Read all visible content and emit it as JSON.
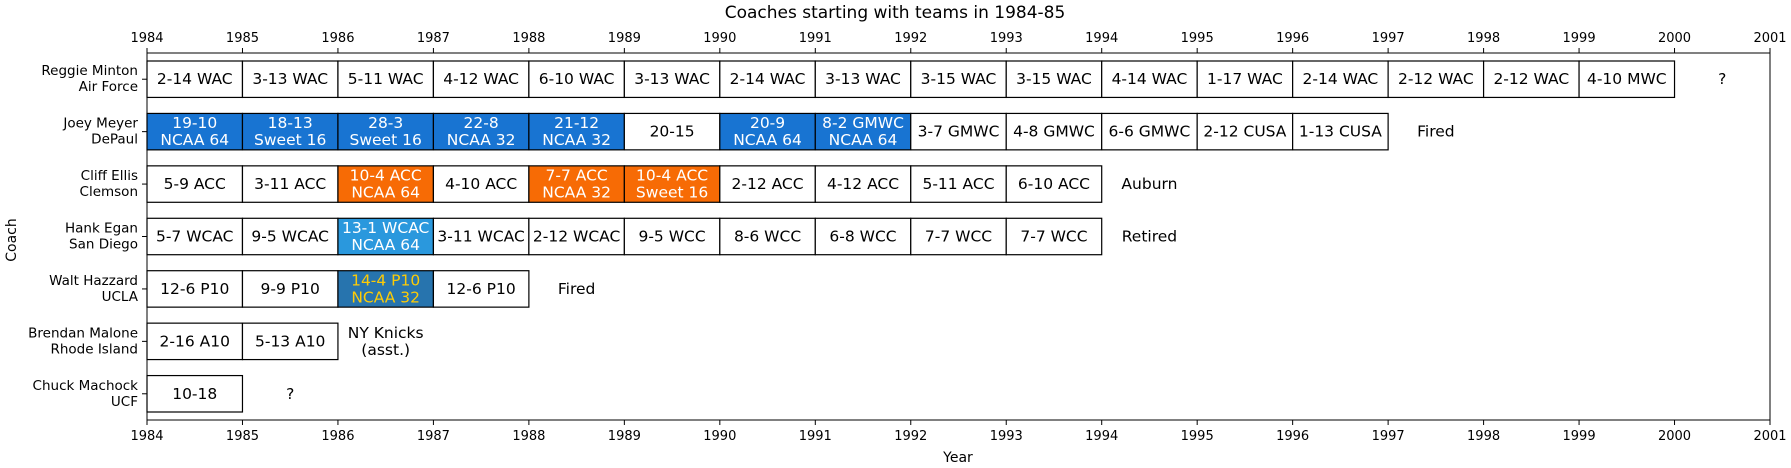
{
  "chart_data": {
    "type": "table",
    "title": "Coaches starting with teams in 1984-85",
    "xlabel": "Year",
    "ylabel": "Coach",
    "xlim": [
      1984,
      2001
    ],
    "x_ticks": [
      "1984",
      "1985",
      "1986",
      "1987",
      "1988",
      "1989",
      "1990",
      "1991",
      "1992",
      "1993",
      "1994",
      "1995",
      "1996",
      "1997",
      "1998",
      "1999",
      "2000",
      "2001"
    ],
    "grid": false,
    "rows": [
      {
        "coach": "Reggie Minton",
        "team": "Air Force",
        "seasons": [
          {
            "start": 1984,
            "text": [
              "2-14 WAC"
            ],
            "fill": "#ffffff",
            "color": "#000000"
          },
          {
            "start": 1985,
            "text": [
              "3-13 WAC"
            ],
            "fill": "#ffffff",
            "color": "#000000"
          },
          {
            "start": 1986,
            "text": [
              "5-11 WAC"
            ],
            "fill": "#ffffff",
            "color": "#000000"
          },
          {
            "start": 1987,
            "text": [
              "4-12 WAC"
            ],
            "fill": "#ffffff",
            "color": "#000000"
          },
          {
            "start": 1988,
            "text": [
              "6-10 WAC"
            ],
            "fill": "#ffffff",
            "color": "#000000"
          },
          {
            "start": 1989,
            "text": [
              "3-13 WAC"
            ],
            "fill": "#ffffff",
            "color": "#000000"
          },
          {
            "start": 1990,
            "text": [
              "2-14 WAC"
            ],
            "fill": "#ffffff",
            "color": "#000000"
          },
          {
            "start": 1991,
            "text": [
              "3-13 WAC"
            ],
            "fill": "#ffffff",
            "color": "#000000"
          },
          {
            "start": 1992,
            "text": [
              "3-15 WAC"
            ],
            "fill": "#ffffff",
            "color": "#000000"
          },
          {
            "start": 1993,
            "text": [
              "3-15 WAC"
            ],
            "fill": "#ffffff",
            "color": "#000000"
          },
          {
            "start": 1994,
            "text": [
              "4-14 WAC"
            ],
            "fill": "#ffffff",
            "color": "#000000"
          },
          {
            "start": 1995,
            "text": [
              "1-17 WAC"
            ],
            "fill": "#ffffff",
            "color": "#000000"
          },
          {
            "start": 1996,
            "text": [
              "2-14 WAC"
            ],
            "fill": "#ffffff",
            "color": "#000000"
          },
          {
            "start": 1997,
            "text": [
              "2-12 WAC"
            ],
            "fill": "#ffffff",
            "color": "#000000"
          },
          {
            "start": 1998,
            "text": [
              "2-12 WAC"
            ],
            "fill": "#ffffff",
            "color": "#000000"
          },
          {
            "start": 1999,
            "text": [
              "4-10 MWC"
            ],
            "fill": "#ffffff",
            "color": "#000000"
          }
        ],
        "outcome": [
          "?"
        ]
      },
      {
        "coach": "Joey Meyer",
        "team": "DePaul",
        "seasons": [
          {
            "start": 1984,
            "text": [
              "19-10",
              "NCAA 64"
            ],
            "fill": "#1874d2",
            "color": "#ffffff"
          },
          {
            "start": 1985,
            "text": [
              "18-13",
              "Sweet 16"
            ],
            "fill": "#1874d2",
            "color": "#ffffff"
          },
          {
            "start": 1986,
            "text": [
              "28-3",
              "Sweet 16"
            ],
            "fill": "#1874d2",
            "color": "#ffffff"
          },
          {
            "start": 1987,
            "text": [
              "22-8",
              "NCAA 32"
            ],
            "fill": "#1874d2",
            "color": "#ffffff"
          },
          {
            "start": 1988,
            "text": [
              "21-12",
              "NCAA 32"
            ],
            "fill": "#1874d2",
            "color": "#ffffff"
          },
          {
            "start": 1989,
            "text": [
              "20-15"
            ],
            "fill": "#ffffff",
            "color": "#000000"
          },
          {
            "start": 1990,
            "text": [
              "20-9",
              "NCAA 64"
            ],
            "fill": "#1874d2",
            "color": "#ffffff"
          },
          {
            "start": 1991,
            "text": [
              "8-2 GMWC",
              "NCAA 64"
            ],
            "fill": "#1874d2",
            "color": "#ffffff"
          },
          {
            "start": 1992,
            "text": [
              "3-7 GMWC"
            ],
            "fill": "#ffffff",
            "color": "#000000"
          },
          {
            "start": 1993,
            "text": [
              "4-8 GMWC"
            ],
            "fill": "#ffffff",
            "color": "#000000"
          },
          {
            "start": 1994,
            "text": [
              "6-6 GMWC"
            ],
            "fill": "#ffffff",
            "color": "#000000"
          },
          {
            "start": 1995,
            "text": [
              "2-12 CUSA"
            ],
            "fill": "#ffffff",
            "color": "#000000"
          },
          {
            "start": 1996,
            "text": [
              "1-13 CUSA"
            ],
            "fill": "#ffffff",
            "color": "#000000"
          }
        ],
        "outcome": [
          "Fired"
        ]
      },
      {
        "coach": "Cliff Ellis",
        "team": "Clemson",
        "seasons": [
          {
            "start": 1984,
            "text": [
              "5-9 ACC"
            ],
            "fill": "#ffffff",
            "color": "#000000"
          },
          {
            "start": 1985,
            "text": [
              "3-11 ACC"
            ],
            "fill": "#ffffff",
            "color": "#000000"
          },
          {
            "start": 1986,
            "text": [
              "10-4 ACC",
              "NCAA 64"
            ],
            "fill": "#f76b05",
            "color": "#ffffff"
          },
          {
            "start": 1987,
            "text": [
              "4-10 ACC"
            ],
            "fill": "#ffffff",
            "color": "#000000"
          },
          {
            "start": 1988,
            "text": [
              "7-7 ACC",
              "NCAA 32"
            ],
            "fill": "#f76b05",
            "color": "#ffffff"
          },
          {
            "start": 1989,
            "text": [
              "10-4 ACC",
              "Sweet 16"
            ],
            "fill": "#f76b05",
            "color": "#ffffff"
          },
          {
            "start": 1990,
            "text": [
              "2-12 ACC"
            ],
            "fill": "#ffffff",
            "color": "#000000"
          },
          {
            "start": 1991,
            "text": [
              "4-12 ACC"
            ],
            "fill": "#ffffff",
            "color": "#000000"
          },
          {
            "start": 1992,
            "text": [
              "5-11 ACC"
            ],
            "fill": "#ffffff",
            "color": "#000000"
          },
          {
            "start": 1993,
            "text": [
              "6-10 ACC"
            ],
            "fill": "#ffffff",
            "color": "#000000"
          }
        ],
        "outcome": [
          "Auburn"
        ]
      },
      {
        "coach": "Hank Egan",
        "team": "San Diego",
        "seasons": [
          {
            "start": 1984,
            "text": [
              "5-7 WCAC"
            ],
            "fill": "#ffffff",
            "color": "#000000"
          },
          {
            "start": 1985,
            "text": [
              "9-5 WCAC"
            ],
            "fill": "#ffffff",
            "color": "#000000"
          },
          {
            "start": 1986,
            "text": [
              "13-1 WCAC",
              "NCAA 64"
            ],
            "fill": "#2a98dd",
            "color": "#ffffff"
          },
          {
            "start": 1987,
            "text": [
              "3-11 WCAC"
            ],
            "fill": "#ffffff",
            "color": "#000000"
          },
          {
            "start": 1988,
            "text": [
              "2-12 WCAC"
            ],
            "fill": "#ffffff",
            "color": "#000000"
          },
          {
            "start": 1989,
            "text": [
              "9-5 WCC"
            ],
            "fill": "#ffffff",
            "color": "#000000"
          },
          {
            "start": 1990,
            "text": [
              "8-6 WCC"
            ],
            "fill": "#ffffff",
            "color": "#000000"
          },
          {
            "start": 1991,
            "text": [
              "6-8 WCC"
            ],
            "fill": "#ffffff",
            "color": "#000000"
          },
          {
            "start": 1992,
            "text": [
              "7-7 WCC"
            ],
            "fill": "#ffffff",
            "color": "#000000"
          },
          {
            "start": 1993,
            "text": [
              "7-7 WCC"
            ],
            "fill": "#ffffff",
            "color": "#000000"
          }
        ],
        "outcome": [
          "Retired"
        ]
      },
      {
        "coach": "Walt Hazzard",
        "team": "UCLA",
        "seasons": [
          {
            "start": 1984,
            "text": [
              "12-6 P10"
            ],
            "fill": "#ffffff",
            "color": "#000000"
          },
          {
            "start": 1985,
            "text": [
              "9-9 P10"
            ],
            "fill": "#ffffff",
            "color": "#000000"
          },
          {
            "start": 1986,
            "text": [
              "14-4 P10",
              "NCAA 32"
            ],
            "fill": "#2774ae",
            "color": "#fdcb06"
          },
          {
            "start": 1987,
            "text": [
              "12-6 P10"
            ],
            "fill": "#ffffff",
            "color": "#000000"
          }
        ],
        "outcome": [
          "Fired"
        ]
      },
      {
        "coach": "Brendan Malone",
        "team": "Rhode Island",
        "seasons": [
          {
            "start": 1984,
            "text": [
              "2-16 A10"
            ],
            "fill": "#ffffff",
            "color": "#000000"
          },
          {
            "start": 1985,
            "text": [
              "5-13 A10"
            ],
            "fill": "#ffffff",
            "color": "#000000"
          }
        ],
        "outcome": [
          "NY Knicks",
          "(asst.)"
        ]
      },
      {
        "coach": "Chuck Machock",
        "team": "UCF",
        "seasons": [
          {
            "start": 1984,
            "text": [
              "10-18"
            ],
            "fill": "#ffffff",
            "color": "#000000"
          }
        ],
        "outcome": [
          "?"
        ]
      }
    ]
  }
}
